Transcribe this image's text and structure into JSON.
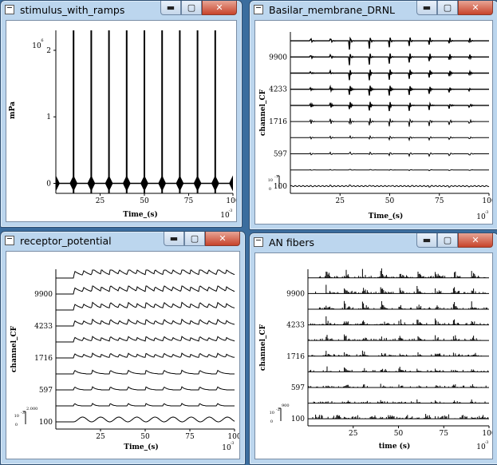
{
  "windows": [
    {
      "id": "stim",
      "title": "stimulus_with_ramps",
      "minimize": "▬",
      "maximize": "▢",
      "close": "✕"
    },
    {
      "id": "bm",
      "title": "Basilar_membrane_DRNL",
      "minimize": "▬",
      "maximize": "▢",
      "close": "✕"
    },
    {
      "id": "rp",
      "title": "receptor_potential",
      "minimize": "▬",
      "maximize": "▢",
      "close": "✕"
    },
    {
      "id": "an",
      "title": "AN fibers",
      "minimize": "▬",
      "maximize": "▢",
      "close": "✕"
    }
  ],
  "chart_data": [
    {
      "type": "line",
      "window": "stimulus_with_ramps",
      "xlabel": "Time_(s)",
      "x_exponent": "10",
      "x_exponent_power": "-3",
      "ylabel": "mPa",
      "y_exponent": "10",
      "y_exponent_power": "6",
      "xlim": [
        0,
        100
      ],
      "ylim": [
        -0.15,
        2.3
      ],
      "x_ticks": [
        "25",
        "50",
        "75",
        "100"
      ],
      "y_ticks": [
        "0",
        "1",
        "2"
      ],
      "click_times": [
        10,
        20,
        30,
        40,
        50,
        60,
        70,
        80,
        90
      ],
      "click_peak": 2.3,
      "ramp_peak": 0.12
    },
    {
      "type": "line",
      "window": "Basilar_membrane_DRNL",
      "xlabel": "Time_(s)",
      "x_exponent": "10",
      "x_exponent_power": "-3",
      "ylabel": "channel_CF",
      "scale_label": "10",
      "scale_power": "-7",
      "scale_zero": "0",
      "xlim": [
        0,
        100
      ],
      "x_ticks": [
        "25",
        "50",
        "75",
        "100"
      ],
      "y_ticks": [
        "9900",
        "4233",
        "1716",
        "597",
        "100"
      ],
      "channels": 10
    },
    {
      "type": "line",
      "window": "receptor_potential",
      "xlabel": "Time_(s)",
      "x_exponent": "10",
      "x_exponent_power": "-3",
      "ylabel": "channel_CF",
      "scale_label": "10",
      "scale_power": "-3",
      "scale_top": "2.000",
      "scale_zero": "0",
      "xlim": [
        0,
        100
      ],
      "x_ticks": [
        "25",
        "50",
        "75",
        "100"
      ],
      "y_ticks": [
        "9900",
        "4233",
        "1716",
        "597",
        "100"
      ],
      "channels": 10
    },
    {
      "type": "bar",
      "window": "AN fibers",
      "xlabel": "time (s)",
      "x_exponent": "10",
      "x_exponent_power": "-3",
      "ylabel": "channel_CF",
      "scale_label": "10",
      "scale_power": "-2",
      "scale_top": "900",
      "scale_zero": "0",
      "xlim": [
        0,
        100
      ],
      "x_ticks": [
        "25",
        "50",
        "75",
        "100"
      ],
      "y_ticks": [
        "9900",
        "4233",
        "1716",
        "597",
        "100"
      ],
      "channels": 10
    }
  ]
}
